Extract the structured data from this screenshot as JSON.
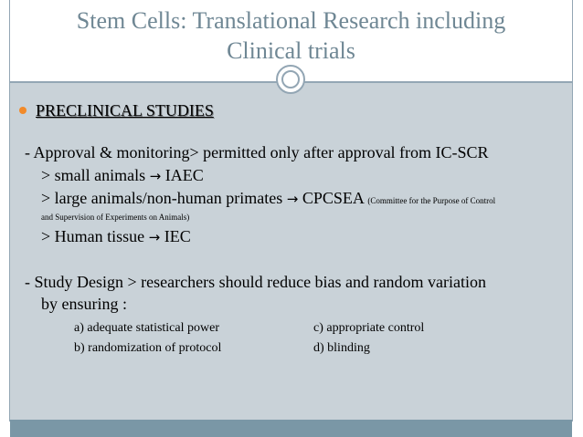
{
  "slide": {
    "title_line1": "Stem Cells: Translational Research including",
    "title_line2": "Clinical trials",
    "heading": "PRECLINICAL STUDIES",
    "approval_line": "- Approval & monitoring> permitted only after approval from IC-SCR",
    "small_animals_a": "> small animals ",
    "small_animals_b": " IAEC",
    "large_animals_a": "> large animals/non-human primates ",
    "large_animals_b": " CPCSEA",
    "cpcsea_note_a": "(Committee for the Purpose of Control",
    "cpcsea_note_b": "and Supervision of Experiments on Animals)",
    "human_tissue_a": "> Human tissue ",
    "human_tissue_b": " IEC",
    "design_line1": "- Study Design > researchers should reduce bias and random variation",
    "design_line2": "by ensuring :",
    "item_a": "a) adequate statistical power",
    "item_b": "b) randomization of protocol",
    "item_c": "c)  appropriate control",
    "item_d": "d)  blinding",
    "arrow": "→"
  },
  "colors": {
    "title": "#6f8794",
    "body_bg": "#c9d2d8",
    "accent_line": "#93a6b4",
    "bullet": "#f28a29",
    "bottom_bar": "#7a97a6"
  }
}
